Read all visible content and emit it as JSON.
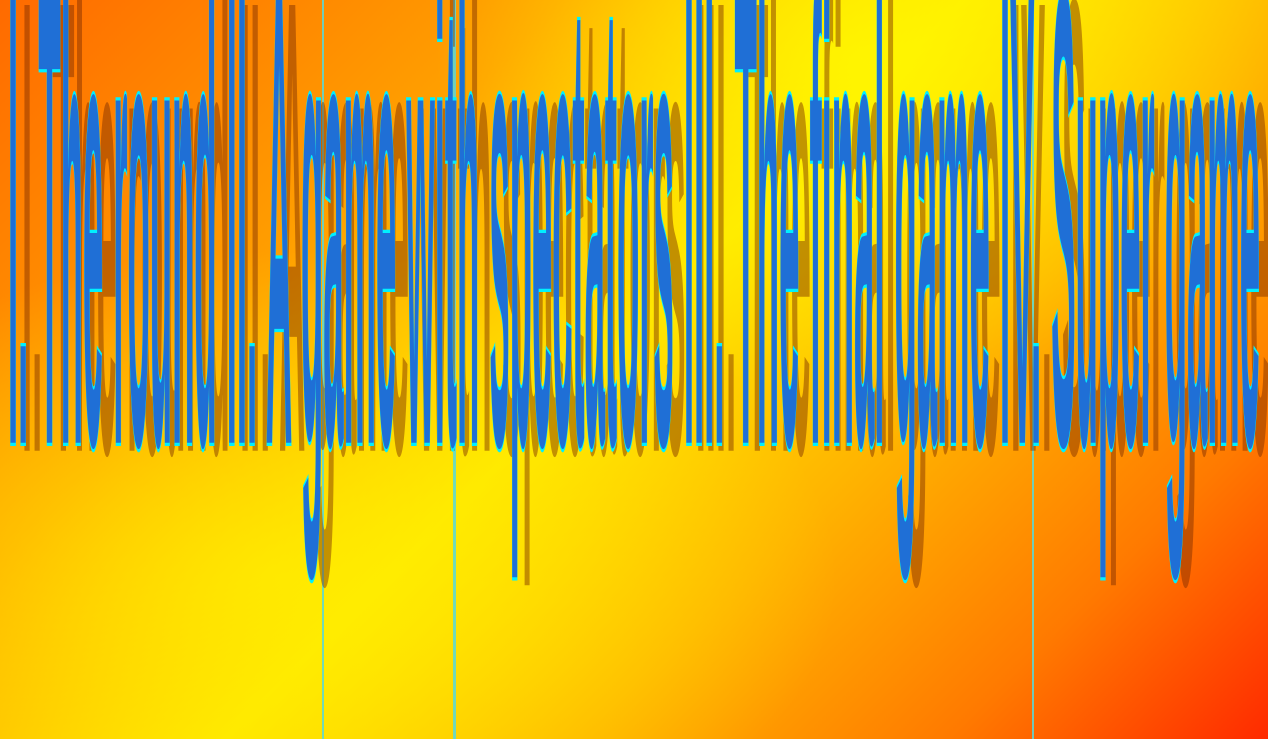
{
  "wordart": {
    "text": "I. The round  II. A game with spectators  III. The final game  IV. Super game",
    "fill_color": "#1f6fd6",
    "outline_color": "#00f0ff",
    "shadow_color": "#7a2a00"
  },
  "background": {
    "gradient_colors": [
      "#ff6a00",
      "#ffa200",
      "#ffe600",
      "#ffb400",
      "#ff7a00",
      "#ff2a00"
    ]
  }
}
